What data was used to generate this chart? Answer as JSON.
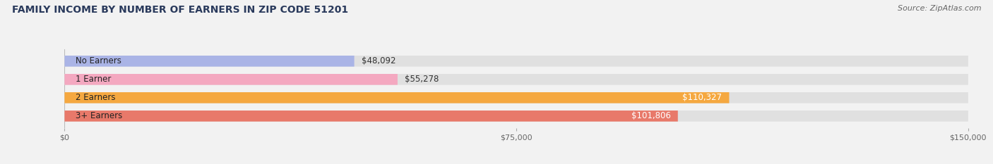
{
  "title": "FAMILY INCOME BY NUMBER OF EARNERS IN ZIP CODE 51201",
  "source": "Source: ZipAtlas.com",
  "categories": [
    "No Earners",
    "1 Earner",
    "2 Earners",
    "3+ Earners"
  ],
  "values": [
    48092,
    55278,
    110327,
    101806
  ],
  "bar_colors": [
    "#aab4e6",
    "#f4a8c0",
    "#f5a840",
    "#e8796a"
  ],
  "value_labels": [
    "$48,092",
    "$55,278",
    "$110,327",
    "$101,806"
  ],
  "value_inside": [
    false,
    false,
    true,
    true
  ],
  "xlim": [
    0,
    150000
  ],
  "xticks": [
    0,
    75000,
    150000
  ],
  "xtick_labels": [
    "$0",
    "$75,000",
    "$150,000"
  ],
  "title_fontsize": 10,
  "source_fontsize": 8,
  "label_fontsize": 8.5,
  "value_fontsize": 8.5,
  "bg_color": "#f2f2f2",
  "bar_bg_color": "#e0e0e0",
  "title_color": "#2a3a5c",
  "source_color": "#666666"
}
